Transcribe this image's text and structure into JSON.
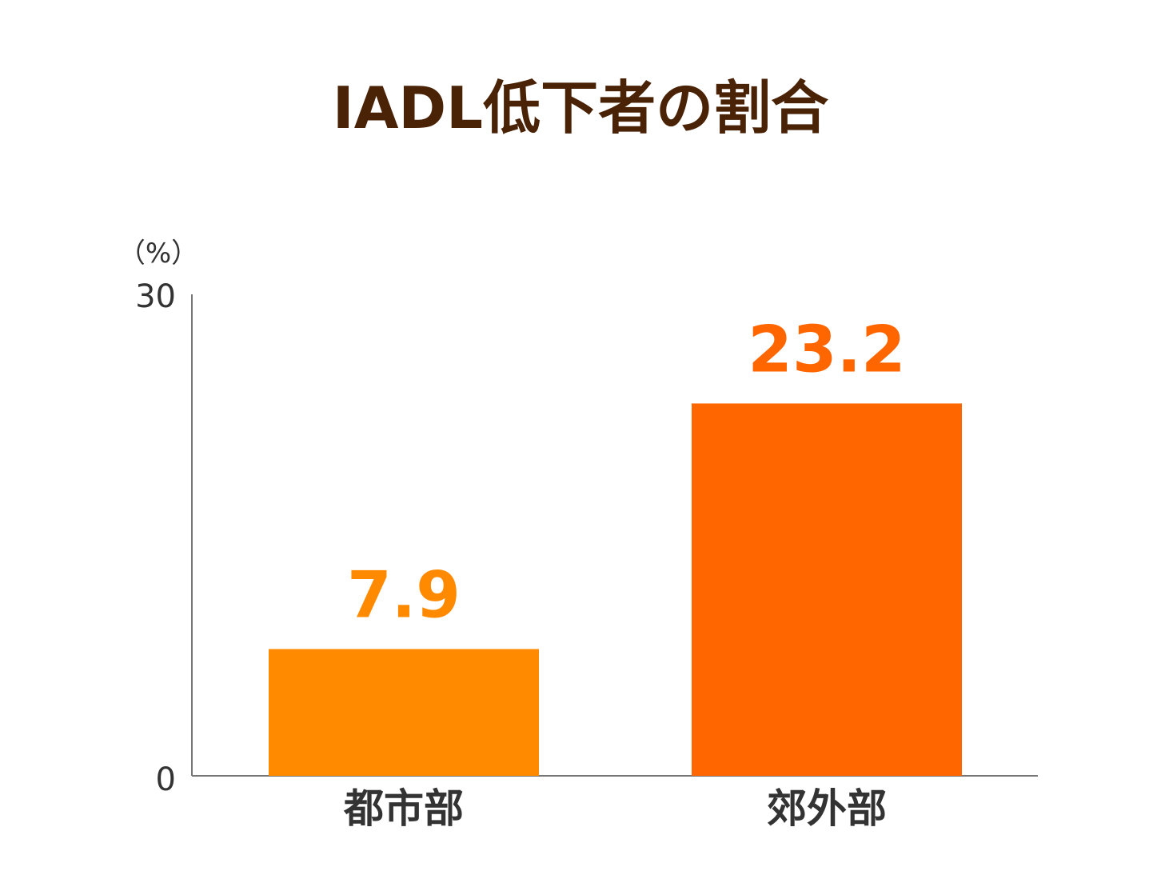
{
  "chart_data": {
    "type": "bar",
    "title": "IADL低下者の割合",
    "unit_label": "（%）",
    "categories": [
      "都市部",
      "郊外部"
    ],
    "values": [
      7.9,
      23.2
    ],
    "value_labels": [
      "7.9",
      "23.2"
    ],
    "colors": [
      "#ff8a00",
      "#ff6600"
    ],
    "ylim": [
      0,
      30
    ],
    "yticks": [
      "0",
      "30"
    ],
    "xlabel": "",
    "ylabel": "",
    "grid": false,
    "legend": "none"
  }
}
